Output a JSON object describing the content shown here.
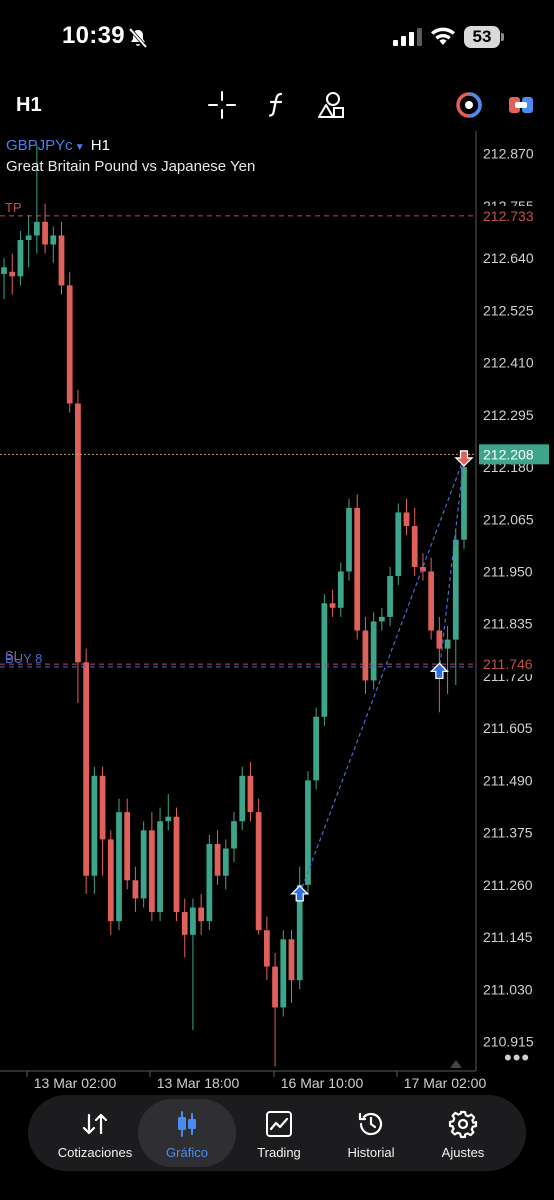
{
  "status_bar": {
    "time": "10:39",
    "battery": "53"
  },
  "toolbar": {
    "timeframe": "H1"
  },
  "symbol": {
    "name": "GBPJPYc",
    "timeframe": "H1",
    "description": "Great Britain Pound vs Japanese Yen"
  },
  "chart_data": {
    "type": "candlestick",
    "price_axis": [
      "212.870",
      "212.755",
      "212.640",
      "212.525",
      "212.410",
      "212.295",
      "212.180",
      "212.065",
      "211.950",
      "211.835",
      "211.720",
      "211.605",
      "211.490",
      "211.375",
      "211.260",
      "211.145",
      "211.030",
      "210.915"
    ],
    "time_axis": [
      "13 Mar 02:00",
      "13 Mar 18:00",
      "16 Mar 10:00",
      "17 Mar 02:00"
    ],
    "ylim": [
      210.85,
      212.92
    ],
    "price_lines": [
      {
        "label": "TP",
        "value": 212.733,
        "value_label": "212.733",
        "color": "#c0504d",
        "style": "dashed"
      },
      {
        "label": "",
        "value": 212.208,
        "value_label": "212.208",
        "color": "#c9a060",
        "style": "dotted",
        "current": true
      },
      {
        "label": "SL",
        "value": 211.746,
        "value_label": "211.746",
        "color": "#c0504d",
        "style": "dashed"
      },
      {
        "label": "BUY 8",
        "value": 211.74,
        "value_label": "",
        "color": "#4a6bd0",
        "style": "dashed"
      }
    ],
    "candles": [
      [
        212.605,
        212.64,
        212.55,
        212.62
      ],
      [
        212.61,
        212.65,
        212.56,
        212.6
      ],
      [
        212.6,
        212.7,
        212.58,
        212.68
      ],
      [
        212.68,
        212.735,
        212.62,
        212.69
      ],
      [
        212.69,
        212.89,
        212.65,
        212.72
      ],
      [
        212.72,
        212.76,
        212.65,
        212.67
      ],
      [
        212.67,
        212.71,
        212.63,
        212.69
      ],
      [
        212.69,
        212.72,
        212.56,
        212.58
      ],
      [
        212.58,
        212.61,
        212.3,
        212.32
      ],
      [
        212.32,
        212.35,
        211.66,
        211.75
      ],
      [
        211.75,
        211.78,
        211.24,
        211.28
      ],
      [
        211.28,
        211.52,
        211.24,
        211.5
      ],
      [
        211.5,
        211.52,
        211.28,
        211.36
      ],
      [
        211.36,
        211.38,
        211.15,
        211.18
      ],
      [
        211.18,
        211.45,
        211.16,
        211.42
      ],
      [
        211.42,
        211.45,
        211.25,
        211.27
      ],
      [
        211.27,
        211.3,
        211.2,
        211.23
      ],
      [
        211.23,
        211.4,
        211.21,
        211.38
      ],
      [
        211.38,
        211.42,
        211.18,
        211.2
      ],
      [
        211.2,
        211.43,
        211.18,
        211.4
      ],
      [
        211.4,
        211.46,
        211.38,
        211.41
      ],
      [
        211.41,
        211.43,
        211.18,
        211.2
      ],
      [
        211.2,
        211.23,
        211.1,
        211.15
      ],
      [
        211.15,
        211.23,
        210.94,
        211.21
      ],
      [
        211.21,
        211.24,
        211.15,
        211.18
      ],
      [
        211.18,
        211.37,
        211.16,
        211.35
      ],
      [
        211.35,
        211.38,
        211.26,
        211.28
      ],
      [
        211.28,
        211.36,
        211.25,
        211.34
      ],
      [
        211.34,
        211.42,
        211.31,
        211.4
      ],
      [
        211.4,
        211.52,
        211.38,
        211.5
      ],
      [
        211.5,
        211.53,
        211.4,
        211.42
      ],
      [
        211.42,
        211.45,
        211.15,
        211.16
      ],
      [
        211.16,
        211.19,
        211.05,
        211.08
      ],
      [
        211.08,
        211.11,
        210.86,
        210.99
      ],
      [
        210.99,
        211.16,
        210.97,
        211.14
      ],
      [
        211.14,
        211.16,
        211.0,
        211.05
      ],
      [
        211.05,
        211.3,
        211.03,
        211.26
      ],
      [
        211.26,
        211.51,
        211.24,
        211.49
      ],
      [
        211.49,
        211.65,
        211.47,
        211.63
      ],
      [
        211.63,
        211.9,
        211.61,
        211.88
      ],
      [
        211.88,
        211.91,
        211.85,
        211.87
      ],
      [
        211.87,
        211.97,
        211.85,
        211.95
      ],
      [
        211.95,
        212.11,
        211.93,
        212.09
      ],
      [
        212.09,
        212.12,
        211.8,
        211.82
      ],
      [
        211.82,
        211.85,
        211.68,
        211.71
      ],
      [
        211.71,
        211.86,
        211.69,
        211.84
      ],
      [
        211.84,
        211.87,
        211.82,
        211.85
      ],
      [
        211.85,
        211.96,
        211.83,
        211.94
      ],
      [
        211.94,
        212.1,
        211.92,
        212.08
      ],
      [
        212.08,
        212.11,
        212.03,
        212.05
      ],
      [
        212.05,
        212.09,
        211.94,
        211.96
      ],
      [
        211.96,
        211.99,
        211.93,
        211.95
      ],
      [
        211.95,
        211.98,
        211.8,
        211.82
      ],
      [
        211.82,
        211.85,
        211.64,
        211.78
      ],
      [
        211.78,
        211.83,
        211.68,
        211.8
      ],
      [
        211.8,
        212.04,
        211.7,
        212.02
      ],
      [
        212.02,
        212.2,
        212.0,
        212.18
      ]
    ],
    "trade_markers": [
      {
        "type": "buy",
        "candle_index": 36,
        "price": 211.24
      },
      {
        "type": "buy",
        "candle_index": 53,
        "price": 211.73
      },
      {
        "type": "sell",
        "candle_index": 56,
        "price": 212.2
      }
    ]
  },
  "nav": {
    "items": [
      {
        "id": "cotizaciones",
        "label": "Cotizaciones",
        "icon": "arrows-up-down-icon",
        "active": false
      },
      {
        "id": "grafico",
        "label": "Gráfico",
        "icon": "candlestick-icon",
        "active": true
      },
      {
        "id": "trading",
        "label": "Trading",
        "icon": "line-chart-icon",
        "active": false
      },
      {
        "id": "historial",
        "label": "Historial",
        "icon": "clock-history-icon",
        "active": false
      },
      {
        "id": "ajustes",
        "label": "Ajustes",
        "icon": "gear-icon",
        "active": false
      }
    ]
  },
  "colors": {
    "bull": "#3da58a",
    "bear": "#e0605a",
    "accent": "#4a8cf0",
    "grid": "#2a2a2a"
  }
}
